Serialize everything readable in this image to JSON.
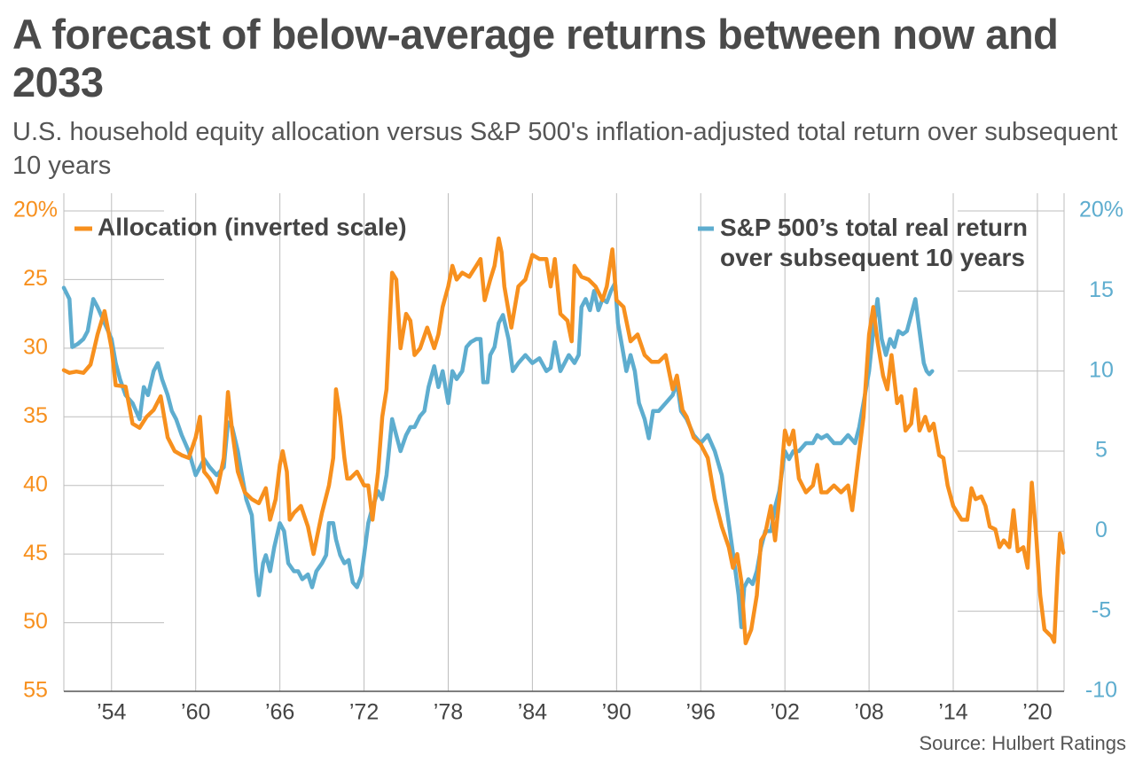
{
  "chart_data": {
    "type": "line",
    "title": "A forecast of below-average returns between now and 2033",
    "subtitle": "U.S. household equity allocation versus S&P 500's inflation-adjusted total return over subsequent 10 years",
    "source": "Source: Hulbert Ratings",
    "xlim": [
      1950.6,
      2021.9
    ],
    "xticks": [
      {
        "value": 1954,
        "label": "’54"
      },
      {
        "value": 1960,
        "label": "’60"
      },
      {
        "value": 1966,
        "label": "’66"
      },
      {
        "value": 1972,
        "label": "’72"
      },
      {
        "value": 1978,
        "label": "’78"
      },
      {
        "value": 1984,
        "label": "’84"
      },
      {
        "value": 1990,
        "label": "’90"
      },
      {
        "value": 1996,
        "label": "’96"
      },
      {
        "value": 2002,
        "label": "’02"
      },
      {
        "value": 2008,
        "label": "’08"
      },
      {
        "value": 2014,
        "label": "’14"
      },
      {
        "value": 2020,
        "label": "’20"
      }
    ],
    "ylim": [
      20,
      55
    ],
    "y_inverted": true,
    "yticks": [
      {
        "value": 20,
        "label": "20%"
      },
      25,
      30,
      35,
      40,
      45,
      50,
      55
    ],
    "y2lim": [
      -10,
      20
    ],
    "y2ticks": [
      -10,
      -5,
      0,
      5,
      10,
      15,
      {
        "value": 20,
        "label": "20%"
      }
    ],
    "grid": true,
    "series": [
      {
        "name": "Allocation (inverted scale)",
        "color": "#f7901e",
        "axis": "y",
        "x": [
          1950.6,
          1951.0,
          1951.5,
          1952.0,
          1952.5,
          1953.0,
          1953.5,
          1954.0,
          1954.3,
          1955.0,
          1955.5,
          1956.0,
          1956.5,
          1957.0,
          1957.5,
          1958.0,
          1958.5,
          1959.0,
          1959.5,
          1960.0,
          1960.3,
          1960.6,
          1961.0,
          1961.5,
          1962.0,
          1962.3,
          1962.6,
          1963.0,
          1963.5,
          1964.0,
          1964.5,
          1965.0,
          1965.3,
          1965.7,
          1966.0,
          1966.2,
          1966.5,
          1966.7,
          1967.0,
          1967.5,
          1968.0,
          1968.4,
          1968.8,
          1969.0,
          1969.5,
          1969.8,
          1970.0,
          1970.3,
          1970.6,
          1970.8,
          1971.0,
          1971.5,
          1972.0,
          1972.3,
          1972.6,
          1973.0,
          1973.3,
          1973.6,
          1974.0,
          1974.3,
          1974.6,
          1975.0,
          1975.3,
          1975.6,
          1976.0,
          1976.5,
          1977.0,
          1977.3,
          1977.6,
          1978.0,
          1978.3,
          1978.6,
          1979.0,
          1979.5,
          1980.0,
          1980.3,
          1980.6,
          1981.0,
          1981.3,
          1981.6,
          1981.8,
          1982.0,
          1982.5,
          1983.0,
          1983.5,
          1984.0,
          1984.5,
          1985.0,
          1985.3,
          1985.6,
          1986.0,
          1986.5,
          1986.8,
          1987.0,
          1987.5,
          1988.0,
          1988.5,
          1989.0,
          1989.3,
          1989.7,
          1990.0,
          1990.5,
          1991.0,
          1991.5,
          1992.0,
          1992.5,
          1993.0,
          1993.5,
          1994.0,
          1994.3,
          1994.7,
          1995.0,
          1995.5,
          1996.0,
          1996.5,
          1997.0,
          1997.5,
          1998.0,
          1998.3,
          1998.6,
          1998.9,
          1999.2,
          1999.6,
          2000.0,
          2000.3,
          2000.6,
          2001.0,
          2001.3,
          2001.6,
          2002.0,
          2002.3,
          2002.6,
          2003.0,
          2003.5,
          2004.0,
          2004.3,
          2004.6,
          2005.0,
          2005.5,
          2006.0,
          2006.5,
          2006.8,
          2007.3,
          2007.6,
          2008.0,
          2008.3,
          2008.6,
          2009.0,
          2009.3,
          2009.6,
          2010.0,
          2010.3,
          2010.6,
          2011.0,
          2011.3,
          2011.6,
          2012.0,
          2012.3,
          2012.6,
          2013.0,
          2013.3,
          2013.6,
          2014.0,
          2014.3,
          2014.6,
          2015.0,
          2015.3,
          2015.6,
          2016.0,
          2016.3,
          2016.6,
          2017.0,
          2017.3,
          2017.6,
          2018.0,
          2018.3,
          2018.6,
          2019.0,
          2019.3,
          2019.6,
          2019.9,
          2020.2,
          2020.5,
          2020.8,
          2021.0,
          2021.2,
          2021.45,
          2021.6,
          2021.85
        ],
        "values": [
          31.6,
          31.8,
          31.7,
          31.8,
          31.2,
          29,
          27.3,
          30,
          32.7,
          32.8,
          35.5,
          35.8,
          35,
          34.5,
          33.5,
          36.5,
          37.5,
          37.8,
          38,
          36.5,
          35,
          39,
          39.5,
          40.5,
          38,
          33.2,
          36,
          39,
          40.5,
          41,
          41.3,
          40.2,
          42.5,
          41,
          38.5,
          37.5,
          39,
          42.5,
          42,
          41.5,
          43,
          45,
          43,
          42,
          40,
          38,
          33,
          35,
          38,
          39.5,
          39.5,
          39,
          40,
          40,
          42.5,
          39,
          35,
          33,
          24.5,
          25,
          30,
          27.5,
          28,
          30.5,
          30,
          28.5,
          30,
          29,
          27,
          25.5,
          24,
          25,
          24.5,
          24.8,
          24,
          23.5,
          26.5,
          25,
          24,
          22,
          23,
          25.5,
          28.5,
          25.5,
          25,
          23.2,
          23.5,
          23.5,
          25.5,
          23.5,
          27.5,
          28,
          29.5,
          24,
          24.8,
          25,
          25.5,
          26.5,
          25.5,
          22.8,
          26.5,
          27,
          29.5,
          29,
          30.5,
          31,
          31,
          30.5,
          33,
          32,
          34.5,
          35,
          36.5,
          37,
          38,
          41,
          43,
          44.5,
          46,
          45,
          47,
          51.5,
          50.5,
          48,
          44,
          43.5,
          41.5,
          44,
          41,
          36,
          37,
          36,
          39.5,
          40.5,
          40,
          38.5,
          40.5,
          40.5,
          40,
          40.5,
          40,
          41.8,
          37.5,
          35,
          29,
          27,
          29.5,
          32,
          33,
          30.5,
          34,
          33.5,
          36,
          35.5,
          33,
          36,
          35,
          36,
          35.5,
          37.8,
          38,
          40,
          41.5,
          42,
          42.5,
          42.5,
          40.2,
          41,
          40.8,
          41.5,
          43,
          43.2,
          44.5,
          44,
          44.5,
          41.8,
          44.8,
          44.5,
          46,
          39.8,
          43.5,
          48,
          50.5,
          50.8,
          51,
          51.4,
          46,
          43.5,
          44.9
        ]
      },
      {
        "name": "S&P 500’s total real return over subsequent 10 years",
        "color": "#5eadcf",
        "axis": "y2",
        "x": [
          1950.6,
          1951.0,
          1951.2,
          1951.6,
          1952.0,
          1952.3,
          1952.7,
          1953.0,
          1953.5,
          1954.0,
          1954.3,
          1954.6,
          1955.0,
          1955.5,
          1956.0,
          1956.3,
          1956.6,
          1957.0,
          1957.3,
          1957.6,
          1958.0,
          1958.3,
          1958.6,
          1959.0,
          1959.5,
          1960.0,
          1960.3,
          1960.6,
          1961.0,
          1961.5,
          1962.0,
          1962.3,
          1962.6,
          1963.0,
          1963.3,
          1963.6,
          1964.0,
          1964.3,
          1964.5,
          1964.8,
          1965.0,
          1965.3,
          1965.6,
          1966.0,
          1966.3,
          1966.6,
          1967.0,
          1967.3,
          1967.6,
          1968.0,
          1968.3,
          1968.6,
          1969.0,
          1969.3,
          1969.5,
          1969.8,
          1970.0,
          1970.3,
          1970.6,
          1970.9,
          1971.2,
          1971.5,
          1971.8,
          1972.0,
          1972.3,
          1972.6,
          1973.0,
          1973.3,
          1973.6,
          1974.0,
          1974.3,
          1974.6,
          1975.0,
          1975.3,
          1975.6,
          1976.0,
          1976.3,
          1976.6,
          1977.0,
          1977.3,
          1977.6,
          1978.0,
          1978.3,
          1978.6,
          1979.0,
          1979.3,
          1979.6,
          1980.0,
          1980.3,
          1980.5,
          1980.8,
          1981.0,
          1981.3,
          1981.6,
          1981.9,
          1982.3,
          1982.6,
          1983.0,
          1983.5,
          1984.0,
          1984.5,
          1985.0,
          1985.3,
          1985.6,
          1986.0,
          1986.3,
          1986.6,
          1987.0,
          1987.3,
          1987.5,
          1987.8,
          1988.1,
          1988.4,
          1988.7,
          1989.0,
          1989.3,
          1989.6,
          1989.9,
          1990.1,
          1990.4,
          1990.7,
          1991.0,
          1991.3,
          1991.6,
          1992.0,
          1992.3,
          1992.6,
          1993.0,
          1993.5,
          1994.0,
          1994.3,
          1994.6,
          1995.0,
          1995.5,
          1996.0,
          1996.5,
          1997.0,
          1997.5,
          1998.0,
          1998.4,
          1998.7,
          1998.9,
          1999.1,
          1999.4,
          1999.7,
          2000.0,
          2000.3,
          2000.6,
          2001.0,
          2001.3,
          2001.6,
          2002.0,
          2002.3,
          2002.6,
          2003.0,
          2003.5,
          2004.0,
          2004.3,
          2004.6,
          2005.0,
          2005.5,
          2006.0,
          2006.5,
          2007.0,
          2007.3,
          2007.6,
          2008.0,
          2008.3,
          2008.6,
          2008.9,
          2009.2,
          2009.5,
          2009.8,
          2010.1,
          2010.4,
          2010.7,
          2011.0,
          2011.3,
          2011.6,
          2011.9,
          2012.1,
          2012.3,
          2012.5
        ],
        "values": [
          15.2,
          14.5,
          11.5,
          11.7,
          12,
          12.5,
          14.5,
          14,
          13,
          12,
          10.5,
          9.5,
          8.5,
          8,
          7,
          9,
          8.5,
          10,
          10.5,
          9.5,
          8.5,
          7.5,
          7,
          6,
          5,
          3.5,
          4,
          4.5,
          4,
          3.5,
          4,
          6.8,
          6.5,
          5,
          3.5,
          2,
          1,
          -2.5,
          -4,
          -2,
          -1.5,
          -2.5,
          -1,
          0.5,
          0,
          -2,
          -2.5,
          -2.5,
          -3,
          -2.7,
          -3.5,
          -2.5,
          -2,
          -1.5,
          0.5,
          0.5,
          -0.5,
          -1.5,
          -2,
          -1.8,
          -3.2,
          -3.5,
          -2.8,
          -1.5,
          0.5,
          1.5,
          2.5,
          2,
          3.5,
          7,
          6,
          5,
          6,
          6.5,
          6.5,
          7.2,
          7.5,
          9,
          10.3,
          9,
          10,
          8,
          10,
          9.5,
          10,
          11.5,
          11.8,
          12,
          12,
          9.3,
          9.3,
          11,
          11.5,
          13,
          13.5,
          12,
          10,
          10.5,
          11,
          10.5,
          10.8,
          10,
          10.2,
          11.8,
          10,
          10.5,
          11,
          10.5,
          11,
          14,
          14.5,
          13.8,
          15,
          13.8,
          14.5,
          14.3,
          15,
          15.5,
          13,
          11.5,
          10,
          11,
          10,
          8,
          7,
          5.8,
          7.5,
          7.5,
          8,
          8.5,
          9.3,
          7.5,
          7,
          6,
          5.5,
          6,
          5,
          3.5,
          0.5,
          -2,
          -4,
          -6,
          -3.5,
          -3,
          -3.3,
          -2.5,
          -1,
          0,
          0,
          1.5,
          2.5,
          5,
          4.5,
          5,
          5,
          5.5,
          5.5,
          6,
          5.8,
          6,
          5.5,
          5.5,
          6,
          5.5,
          6.5,
          8,
          10,
          12.5,
          14.5,
          12,
          11,
          12,
          11.5,
          12.5,
          12.3,
          12.5,
          13.5,
          14.5,
          12.5,
          10.5,
          10,
          9.8,
          10
        ]
      }
    ]
  }
}
